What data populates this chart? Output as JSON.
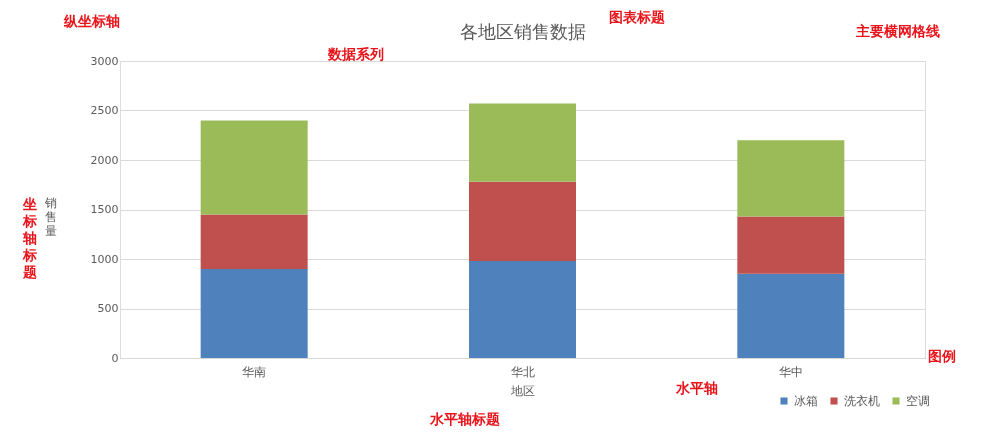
{
  "chart_data": {
    "type": "bar",
    "title": "各地区销售数据",
    "xlabel": "地区",
    "ylabel": "销售量",
    "categories": [
      "华南",
      "华北",
      "华中"
    ],
    "stacked": true,
    "series": [
      {
        "name": "冰箱",
        "color": "#4f81bd",
        "values": [
          900,
          980,
          850
        ]
      },
      {
        "name": "洗衣机",
        "color": "#c0504d",
        "values": [
          550,
          800,
          580
        ]
      },
      {
        "name": "空调",
        "color": "#9bbb59",
        "values": [
          950,
          790,
          770
        ]
      }
    ],
    "ylim": [
      0,
      3000
    ],
    "yticks": [
      0,
      500,
      1000,
      1500,
      2000,
      2500,
      3000
    ],
    "grid": "y",
    "legend": "bottom right",
    "annotations": [
      "纵坐标轴",
      "图表标题",
      "主要横网格线",
      "数据系列",
      "坐标轴标题",
      "水平轴",
      "图例",
      "水平轴标题"
    ]
  }
}
